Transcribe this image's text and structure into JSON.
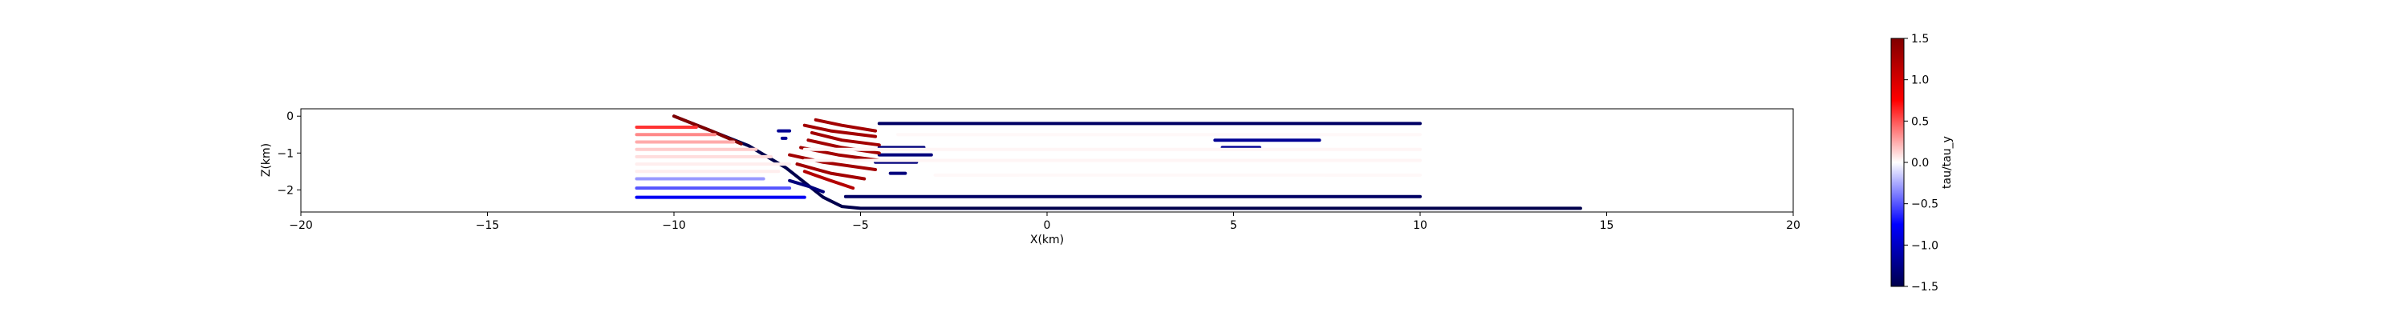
{
  "chart_data": {
    "type": "scatter",
    "title": "",
    "xlabel": "X(km)",
    "ylabel": "Z(km)",
    "xlim": [
      -20,
      20
    ],
    "ylim": [
      -2.6,
      0.2
    ],
    "x_ticks": [
      -20,
      -15,
      -10,
      -5,
      0,
      5,
      10,
      15,
      20
    ],
    "y_ticks": [
      0,
      -1,
      -2
    ],
    "grid": false,
    "colormap": "seismic",
    "colorbar": {
      "label": "tau/tau_y",
      "min": -1.5,
      "max": 1.5,
      "ticks": [
        1.5,
        1.0,
        0.5,
        0.0,
        -0.5,
        -1.0,
        -1.5
      ]
    },
    "series": [
      {
        "kind": "line",
        "value": -1.5,
        "points": [
          [
            -10,
            0
          ],
          [
            -9,
            -0.4
          ],
          [
            -8,
            -0.8
          ],
          [
            -7,
            -1.4
          ],
          [
            -6.5,
            -1.8
          ],
          [
            -6,
            -2.2
          ],
          [
            -5.5,
            -2.45
          ],
          [
            -5,
            -2.5
          ],
          [
            14.3,
            -2.5
          ]
        ]
      },
      {
        "kind": "line",
        "value": 1.5,
        "points": [
          [
            -10,
            0
          ],
          [
            -9,
            -0.4
          ],
          [
            -8.2,
            -0.75
          ]
        ]
      },
      {
        "kind": "line",
        "value": -1.4,
        "points": [
          [
            -4.5,
            -0.2
          ],
          [
            10,
            -0.2
          ]
        ]
      },
      {
        "kind": "line",
        "value": -1.4,
        "points": [
          [
            -5.4,
            -2.18
          ],
          [
            10,
            -2.18
          ]
        ]
      },
      {
        "kind": "line",
        "value": -1.2,
        "points": [
          [
            4.5,
            -0.65
          ],
          [
            7.3,
            -0.65
          ]
        ]
      },
      {
        "kind": "line",
        "value": -1.2,
        "points": [
          [
            4.7,
            -0.85
          ],
          [
            5.7,
            -0.85
          ]
        ]
      },
      {
        "kind": "line",
        "value": -1.3,
        "points": [
          [
            -4.5,
            -0.85
          ],
          [
            -3.3,
            -0.85
          ]
        ]
      },
      {
        "kind": "line",
        "value": -1.3,
        "points": [
          [
            -4.5,
            -1.05
          ],
          [
            -3.1,
            -1.05
          ]
        ]
      },
      {
        "kind": "line",
        "value": -1.3,
        "points": [
          [
            -4.6,
            -1.25
          ],
          [
            -3.5,
            -1.25
          ]
        ]
      },
      {
        "kind": "line",
        "value": -1.3,
        "points": [
          [
            -4.2,
            -1.55
          ],
          [
            -3.8,
            -1.55
          ]
        ]
      },
      {
        "kind": "line",
        "value": -1.2,
        "points": [
          [
            -7.2,
            -0.4
          ],
          [
            -6.9,
            -0.4
          ]
        ]
      },
      {
        "kind": "line",
        "value": -1.2,
        "points": [
          [
            -7.1,
            -0.6
          ],
          [
            -7.0,
            -0.6
          ]
        ]
      },
      {
        "kind": "line",
        "value": 1.3,
        "points": [
          [
            -6.2,
            -0.1
          ],
          [
            -5.5,
            -0.25
          ],
          [
            -4.6,
            -0.4
          ]
        ]
      },
      {
        "kind": "line",
        "value": 1.3,
        "points": [
          [
            -6.5,
            -0.25
          ],
          [
            -5.8,
            -0.4
          ],
          [
            -4.6,
            -0.55
          ]
        ]
      },
      {
        "kind": "line",
        "value": 1.3,
        "points": [
          [
            -6.3,
            -0.45
          ],
          [
            -5.5,
            -0.65
          ],
          [
            -4.5,
            -0.78
          ]
        ]
      },
      {
        "kind": "line",
        "value": 1.3,
        "points": [
          [
            -6.4,
            -0.65
          ],
          [
            -5.5,
            -0.85
          ],
          [
            -4.5,
            -1.0
          ]
        ]
      },
      {
        "kind": "line",
        "value": 1.3,
        "points": [
          [
            -6.6,
            -0.85
          ],
          [
            -5.6,
            -1.05
          ],
          [
            -4.5,
            -1.2
          ]
        ]
      },
      {
        "kind": "line",
        "value": 1.3,
        "points": [
          [
            -6.9,
            -1.05
          ],
          [
            -6.0,
            -1.25
          ],
          [
            -4.6,
            -1.45
          ]
        ]
      },
      {
        "kind": "line",
        "value": 1.3,
        "points": [
          [
            -6.7,
            -1.3
          ],
          [
            -5.8,
            -1.55
          ],
          [
            -4.9,
            -1.7
          ]
        ]
      },
      {
        "kind": "line",
        "value": 1.2,
        "points": [
          [
            -6.5,
            -1.5
          ],
          [
            -5.8,
            -1.75
          ],
          [
            -5.2,
            -1.95
          ]
        ]
      },
      {
        "kind": "line",
        "value": -1.3,
        "points": [
          [
            -6.9,
            -1.75
          ],
          [
            -6.4,
            -1.9
          ],
          [
            -6.0,
            -2.05
          ]
        ]
      },
      {
        "kind": "line",
        "value": 0.6,
        "points": [
          [
            -11,
            -0.3
          ],
          [
            -9.4,
            -0.3
          ]
        ]
      },
      {
        "kind": "line",
        "value": 0.35,
        "points": [
          [
            -11,
            -0.5
          ],
          [
            -8.9,
            -0.5
          ]
        ]
      },
      {
        "kind": "line",
        "value": 0.25,
        "points": [
          [
            -11,
            -0.7
          ],
          [
            -8.4,
            -0.7
          ]
        ]
      },
      {
        "kind": "line",
        "value": 0.15,
        "points": [
          [
            -11,
            -0.9
          ],
          [
            -7.8,
            -0.9
          ]
        ]
      },
      {
        "kind": "line",
        "value": 0.1,
        "points": [
          [
            -11,
            -1.1
          ],
          [
            -7.4,
            -1.1
          ]
        ]
      },
      {
        "kind": "line",
        "value": 0.05,
        "points": [
          [
            -11,
            -1.3
          ],
          [
            -6.9,
            -1.3
          ]
        ]
      },
      {
        "kind": "line",
        "value": 0.05,
        "points": [
          [
            -11,
            -1.5
          ],
          [
            -7.2,
            -1.5
          ]
        ]
      },
      {
        "kind": "line",
        "value": 0.03,
        "points": [
          [
            -6.5,
            -0.9
          ],
          [
            10,
            -0.9
          ]
        ]
      },
      {
        "kind": "line",
        "value": 0.03,
        "points": [
          [
            -6.5,
            -1.2
          ],
          [
            10,
            -1.2
          ]
        ]
      },
      {
        "kind": "line",
        "value": 0.02,
        "points": [
          [
            -4,
            -0.5
          ],
          [
            10,
            -0.5
          ]
        ]
      },
      {
        "kind": "line",
        "value": 0.02,
        "points": [
          [
            -3,
            -1.6
          ],
          [
            10,
            -1.6
          ]
        ]
      },
      {
        "kind": "line",
        "value": -0.3,
        "points": [
          [
            -11,
            -1.7
          ],
          [
            -7.6,
            -1.7
          ]
        ]
      },
      {
        "kind": "line",
        "value": -0.5,
        "points": [
          [
            -11,
            -1.95
          ],
          [
            -6.9,
            -1.95
          ]
        ]
      },
      {
        "kind": "line",
        "value": -0.8,
        "points": [
          [
            -11,
            -2.2
          ],
          [
            -6.5,
            -2.2
          ]
        ]
      }
    ]
  }
}
